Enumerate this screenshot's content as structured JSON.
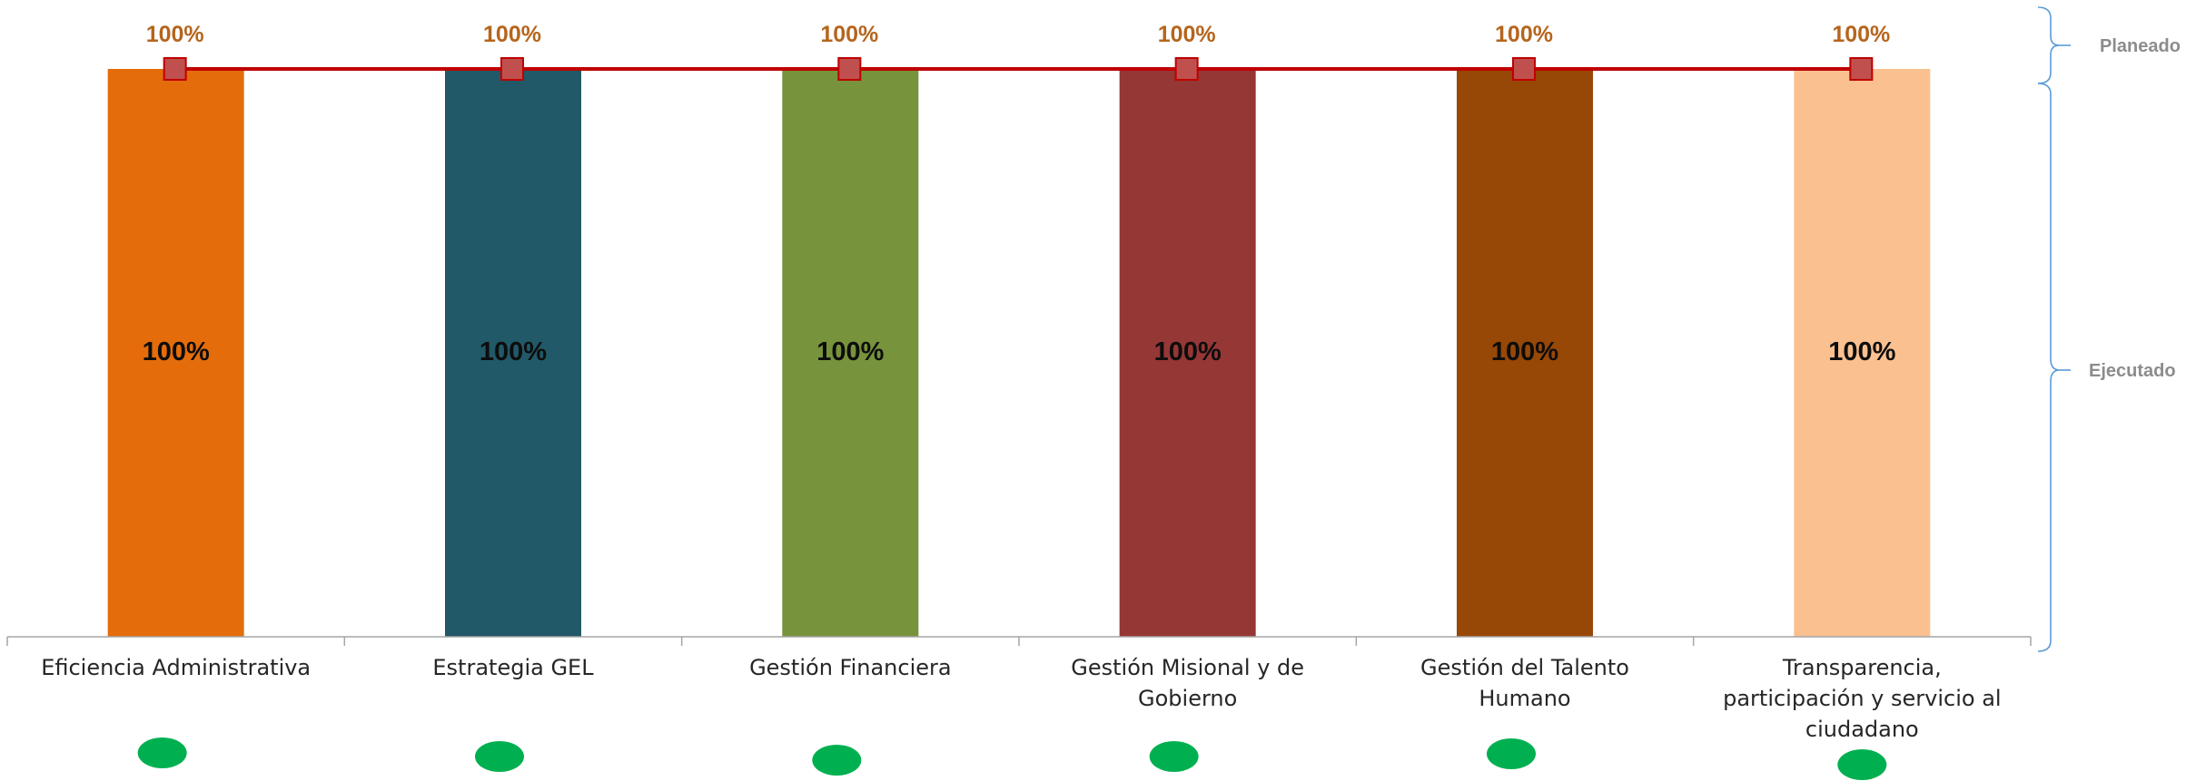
{
  "chart_data": {
    "type": "bar",
    "categories": [
      "Eficiencia Administrativa",
      "Estrategia GEL",
      "Gestión Financiera",
      "Gestión Misional y de Gobierno",
      "Gestión del Talento Humano",
      "Transparencia, participación y servicio al ciudadano"
    ],
    "category_lines": [
      [
        "Eficiencia Administrativa"
      ],
      [
        "Estrategia GEL"
      ],
      [
        "Gestión Financiera"
      ],
      [
        "Gestión Misional y de",
        "Gobierno"
      ],
      [
        "Gestión del Talento",
        "Humano"
      ],
      [
        "Transparencia,",
        "participación y servicio al",
        "ciudadano"
      ]
    ],
    "series": [
      {
        "name": "Ejecutado",
        "type": "bar",
        "values": [
          100,
          100,
          100,
          100,
          100,
          100
        ],
        "labels": [
          "100%",
          "100%",
          "100%",
          "100%",
          "100%",
          "100%"
        ],
        "colors": [
          "#e46c0a",
          "#215968",
          "#77933c",
          "#953735",
          "#974706",
          "#fac090"
        ]
      },
      {
        "name": "Planeado",
        "type": "line",
        "values": [
          100,
          100,
          100,
          100,
          100,
          100
        ],
        "labels": [
          "100%",
          "100%",
          "100%",
          "100%",
          "100%",
          "100%"
        ],
        "color": "#c00000",
        "marker_fill": "#c0504d"
      }
    ],
    "status_indicators": {
      "color": "#00b050",
      "values": [
        "green",
        "green",
        "green",
        "green",
        "green",
        "green"
      ]
    },
    "ylim": [
      0,
      100
    ],
    "grid": false,
    "legend": {
      "placement": "right",
      "style": "bracket",
      "entries": [
        "Planeado",
        "Ejecutado"
      ]
    },
    "title": "",
    "xlabel": "",
    "ylabel": ""
  }
}
